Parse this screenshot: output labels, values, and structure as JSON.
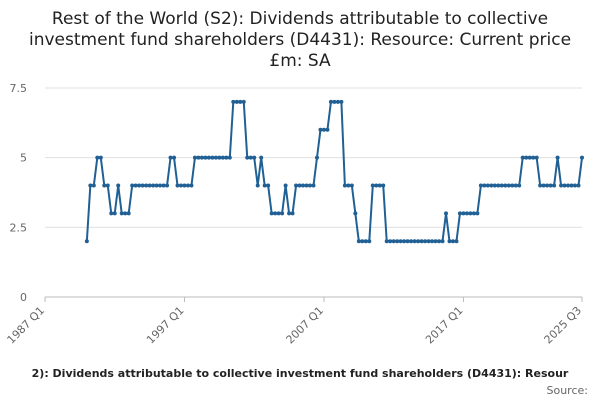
{
  "chart_data": {
    "type": "line",
    "title": "Rest of the World (S2): Dividends attributable to collective investment fund shareholders (D4431): Resource: Current price £m: SA",
    "x_label": "2): Dividends attributable to collective investment fund shareholders (D4431): Resour",
    "source": "Source:",
    "color": "#206095",
    "grid": true,
    "xlim": [
      "1987 Q1",
      "2025 Q3"
    ],
    "xticks": [
      "1987 Q1",
      "1997 Q1",
      "2007 Q1",
      "2017 Q1",
      "2025 Q3"
    ],
    "ylim": [
      0,
      7.5
    ],
    "yticks": [
      0,
      2.5,
      5,
      7.5
    ],
    "x": [
      "1990 Q1",
      "1990 Q2",
      "1990 Q3",
      "1990 Q4",
      "1991 Q1",
      "1991 Q2",
      "1991 Q3",
      "1991 Q4",
      "1992 Q1",
      "1992 Q2",
      "1992 Q3",
      "1992 Q4",
      "1993 Q1",
      "1993 Q2",
      "1993 Q3",
      "1993 Q4",
      "1994 Q1",
      "1994 Q2",
      "1994 Q3",
      "1994 Q4",
      "1995 Q1",
      "1995 Q2",
      "1995 Q3",
      "1995 Q4",
      "1996 Q1",
      "1996 Q2",
      "1996 Q3",
      "1996 Q4",
      "1997 Q1",
      "1997 Q2",
      "1997 Q3",
      "1997 Q4",
      "1998 Q1",
      "1998 Q2",
      "1998 Q3",
      "1998 Q4",
      "1999 Q1",
      "1999 Q2",
      "1999 Q3",
      "1999 Q4",
      "2000 Q1",
      "2000 Q2",
      "2000 Q3",
      "2000 Q4",
      "2001 Q1",
      "2001 Q2",
      "2001 Q3",
      "2001 Q4",
      "2002 Q1",
      "2002 Q2",
      "2002 Q3",
      "2002 Q4",
      "2003 Q1",
      "2003 Q2",
      "2003 Q3",
      "2003 Q4",
      "2004 Q1",
      "2004 Q2",
      "2004 Q3",
      "2004 Q4",
      "2005 Q1",
      "2005 Q2",
      "2005 Q3",
      "2005 Q4",
      "2006 Q1",
      "2006 Q2",
      "2006 Q3",
      "2006 Q4",
      "2007 Q1",
      "2007 Q2",
      "2007 Q3",
      "2007 Q4",
      "2008 Q1",
      "2008 Q2",
      "2008 Q3",
      "2008 Q4",
      "2009 Q1",
      "2009 Q2",
      "2009 Q3",
      "2009 Q4",
      "2010 Q1",
      "2010 Q2",
      "2010 Q3",
      "2010 Q4",
      "2011 Q1",
      "2011 Q2",
      "2011 Q3",
      "2011 Q4",
      "2012 Q1",
      "2012 Q2",
      "2012 Q3",
      "2012 Q4",
      "2013 Q1",
      "2013 Q2",
      "2013 Q3",
      "2013 Q4",
      "2014 Q1",
      "2014 Q2",
      "2014 Q3",
      "2014 Q4",
      "2015 Q1",
      "2015 Q2",
      "2015 Q3",
      "2015 Q4",
      "2016 Q1",
      "2016 Q2",
      "2016 Q3",
      "2016 Q4",
      "2017 Q1",
      "2017 Q2",
      "2017 Q3",
      "2017 Q4",
      "2018 Q1",
      "2018 Q2",
      "2018 Q3",
      "2018 Q4",
      "2019 Q1",
      "2019 Q2",
      "2019 Q3",
      "2019 Q4",
      "2020 Q1",
      "2020 Q2",
      "2020 Q3",
      "2020 Q4",
      "2021 Q1",
      "2021 Q2",
      "2021 Q3",
      "2021 Q4",
      "2022 Q1",
      "2022 Q2",
      "2022 Q3",
      "2022 Q4",
      "2023 Q1",
      "2023 Q2",
      "2023 Q3",
      "2023 Q4",
      "2024 Q1",
      "2024 Q2",
      "2024 Q3",
      "2024 Q4",
      "2025 Q1",
      "2025 Q2",
      "2025 Q3"
    ],
    "values": [
      2,
      4,
      4,
      5,
      5,
      4,
      4,
      3,
      3,
      4,
      3,
      3,
      3,
      4,
      4,
      4,
      4,
      4,
      4,
      4,
      4,
      4,
      4,
      4,
      5,
      5,
      4,
      4,
      4,
      4,
      4,
      5,
      5,
      5,
      5,
      5,
      5,
      5,
      5,
      5,
      5,
      5,
      7,
      7,
      7,
      7,
      5,
      5,
      5,
      4,
      5,
      4,
      4,
      3,
      3,
      3,
      3,
      4,
      3,
      3,
      4,
      4,
      4,
      4,
      4,
      4,
      5,
      6,
      6,
      6,
      7,
      7,
      7,
      7,
      4,
      4,
      4,
      3,
      2,
      2,
      2,
      2,
      4,
      4,
      4,
      4,
      2,
      2,
      2,
      2,
      2,
      2,
      2,
      2,
      2,
      2,
      2,
      2,
      2,
      2,
      2,
      2,
      2,
      3,
      2,
      2,
      2,
      3,
      3,
      3,
      3,
      3,
      3,
      4,
      4,
      4,
      4,
      4,
      4,
      4,
      4,
      4,
      4,
      4,
      4,
      5,
      5,
      5,
      5,
      5,
      4,
      4,
      4,
      4,
      4,
      5,
      4,
      4,
      4,
      4,
      4,
      4,
      5
    ]
  }
}
